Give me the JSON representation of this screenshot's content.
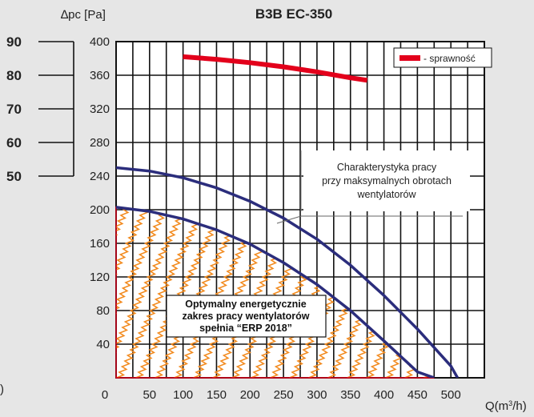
{
  "chart_data": {
    "type": "line",
    "title": "B3B EC-350",
    "ylabel": "∆pc [Pa]",
    "xlabel": "Q(m",
    "xlabel_sup": "3",
    "xlabel_end": "/h)",
    "left_edge_label": ")",
    "xlim": [
      0,
      550
    ],
    "ylim": [
      0,
      400
    ],
    "x_ticks": [
      0,
      50,
      100,
      150,
      200,
      250,
      300,
      350,
      400,
      450,
      500
    ],
    "y_ticks": [
      40,
      80,
      120,
      160,
      200,
      240,
      280,
      320,
      360,
      400
    ],
    "grid": true,
    "efficiency_axis": {
      "ticks": [
        {
          "label": "90",
          "pressure": 400
        },
        {
          "label": "80",
          "pressure": 360
        },
        {
          "label": "70",
          "pressure": 320
        },
        {
          "label": "60",
          "pressure": 280
        },
        {
          "label": "50",
          "pressure": 240
        }
      ]
    },
    "series": [
      {
        "name": "sprawność",
        "color": "#e3001b",
        "x": [
          100,
          150,
          200,
          250,
          300,
          350,
          375
        ],
        "y": [
          382,
          379,
          375,
          370,
          364,
          357,
          354
        ]
      },
      {
        "color": "#2b2d7c",
        "x": [
          0,
          50,
          100,
          150,
          200,
          250,
          300,
          350,
          400,
          450,
          500,
          510
        ],
        "y": [
          250,
          246,
          238,
          226,
          210,
          190,
          165,
          134,
          98,
          58,
          14,
          0
        ]
      },
      {
        "color": "#2b2d7c",
        "x": [
          0,
          50,
          100,
          150,
          200,
          250,
          300,
          350,
          400,
          450,
          475
        ],
        "y": [
          203,
          198,
          189,
          176,
          159,
          137,
          111,
          80,
          44,
          7,
          0
        ]
      }
    ],
    "legend": {
      "entry": "- sprawność",
      "position": "top-right",
      "color": "#e3001b"
    },
    "annotations": {
      "curve_note": [
        "Charakterystyka pracy",
        "przy maksymalnych obrotach",
        "wentylatorów"
      ],
      "zone_note": [
        "Optymalny energetycznie",
        "zakres pracy wentylatorów",
        "spełnia “ERP 2018”"
      ],
      "zone_hatch_color": "#f28a1e",
      "zone_edge_color": "#e3001b"
    }
  }
}
